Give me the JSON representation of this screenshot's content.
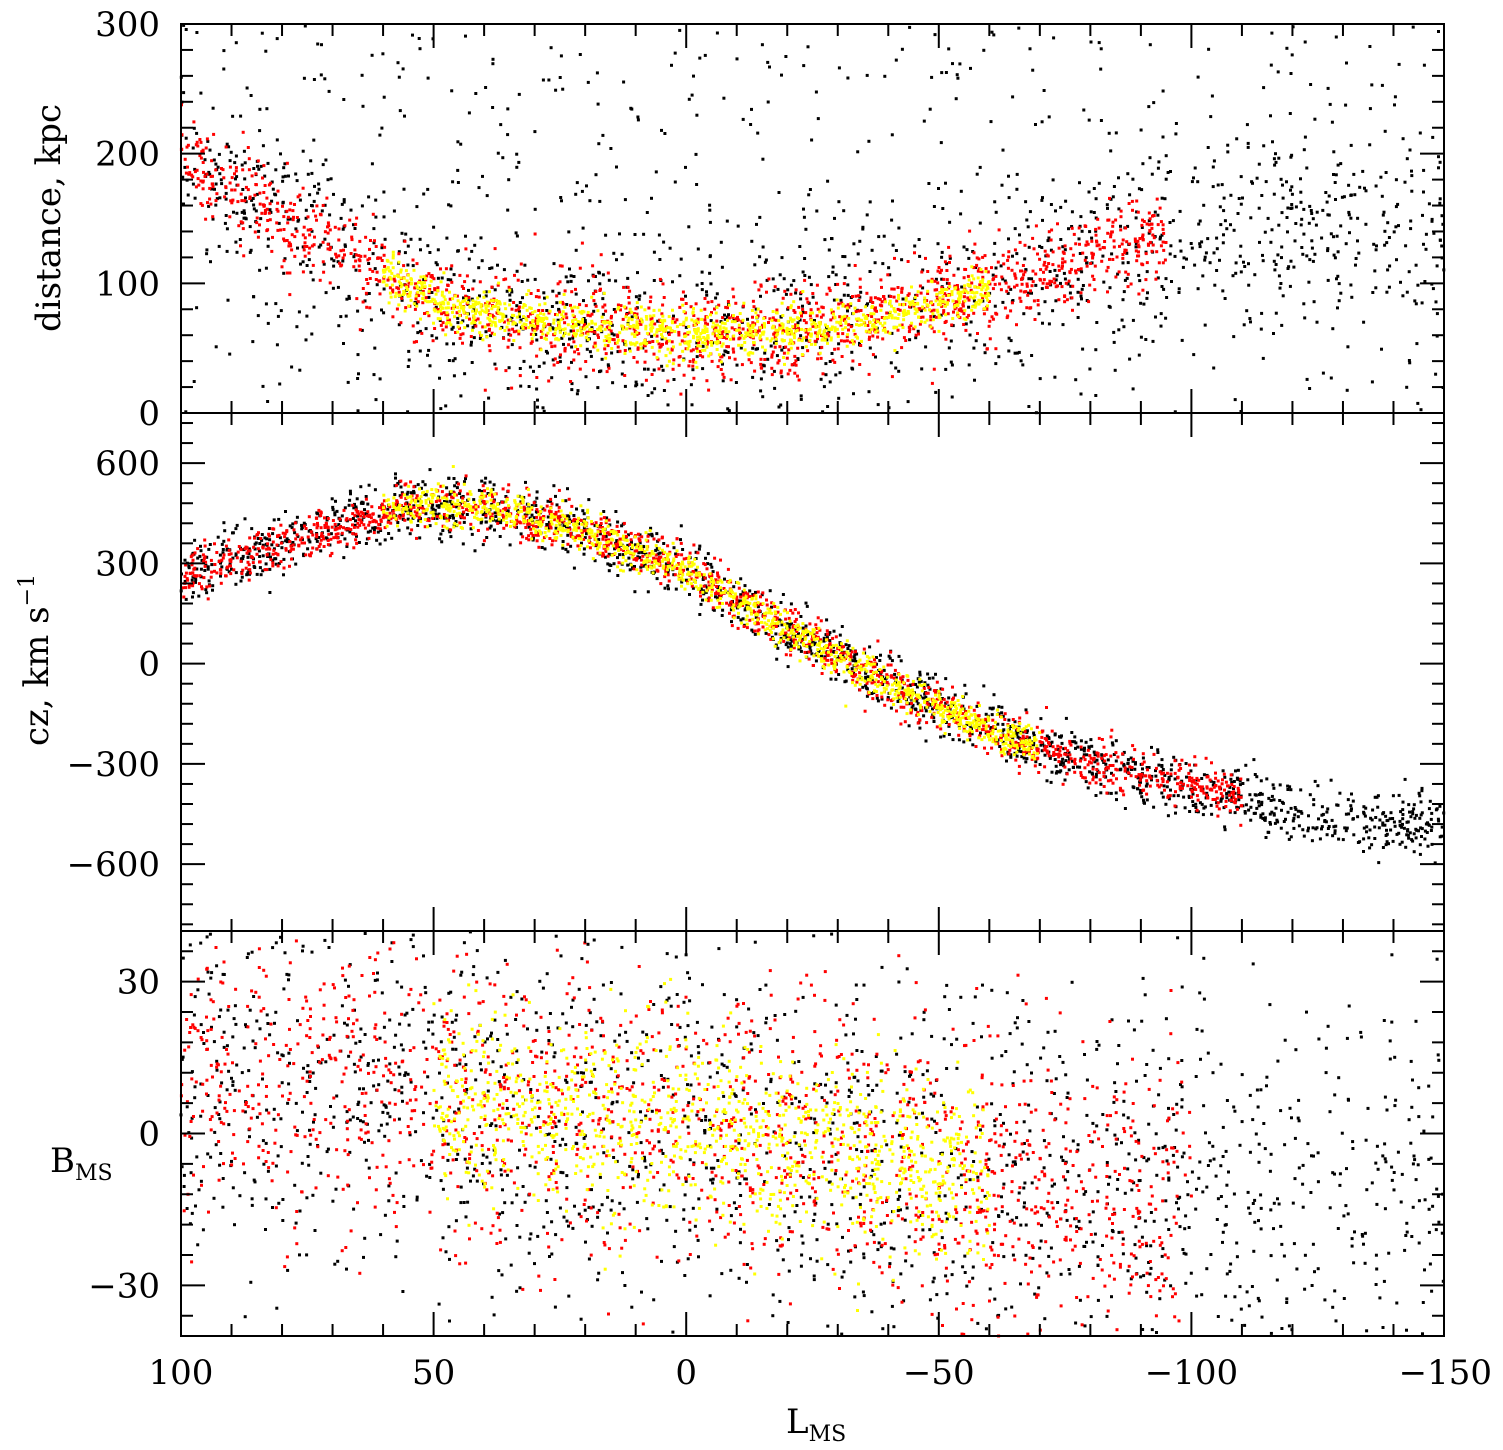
{
  "chart_data": {
    "type": "scatter",
    "shared_x": {
      "label_main": "L",
      "label_sub": "MS",
      "range": [
        100,
        -150
      ],
      "ticks": [
        100,
        50,
        0,
        -50,
        -100,
        -150
      ],
      "tick_labels": [
        "100",
        "50",
        "0",
        "−50",
        "−100",
        "−150"
      ]
    },
    "colors": {
      "far": "#000000",
      "mid": "#ff0000",
      "core": "#ffff00"
    },
    "panels": [
      {
        "id": "distance",
        "ylabel": "distance, kpc",
        "ylim": [
          0,
          300
        ],
        "ticks": [
          0,
          100,
          200,
          300
        ],
        "tick_labels": [
          "0",
          "100",
          "200",
          "300"
        ],
        "trend": [
          [
            100,
            200
          ],
          [
            80,
            150
          ],
          [
            65,
            120
          ],
          [
            50,
            85
          ],
          [
            30,
            70
          ],
          [
            0,
            60
          ],
          [
            -20,
            62
          ],
          [
            -40,
            75
          ],
          [
            -60,
            95
          ],
          [
            -80,
            120
          ],
          [
            -95,
            140
          ]
        ],
        "series": [
          {
            "name": "black",
            "color": "#000000",
            "L_range": [
              100,
              -150
            ],
            "spread": 35,
            "background": true
          },
          {
            "name": "red",
            "color": "#ff0000",
            "L_range": [
              100,
              -95
            ],
            "spread": 18
          },
          {
            "name": "yellow",
            "color": "#ffff00",
            "L_range": [
              60,
              -60
            ],
            "spread": 9
          }
        ]
      },
      {
        "id": "cz",
        "ylabel": "cz, km s",
        "ylabel_sup": "−1",
        "ylim": [
          -800,
          750
        ],
        "ticks": [
          -600,
          -300,
          0,
          300,
          600
        ],
        "tick_labels": [
          "−600",
          "−300",
          "0",
          "300",
          "600"
        ],
        "trend": [
          [
            100,
            270
          ],
          [
            85,
            330
          ],
          [
            70,
            410
          ],
          [
            55,
            470
          ],
          [
            40,
            470
          ],
          [
            20,
            400
          ],
          [
            0,
            280
          ],
          [
            -20,
            100
          ],
          [
            -40,
            -60
          ],
          [
            -60,
            -200
          ],
          [
            -80,
            -300
          ],
          [
            -100,
            -370
          ],
          [
            -120,
            -440
          ],
          [
            -135,
            -480
          ]
        ],
        "series": [
          {
            "name": "black",
            "color": "#000000",
            "L_range": [
              100,
              -150
            ],
            "spread": 45
          },
          {
            "name": "red",
            "color": "#ff0000",
            "L_range": [
              100,
              -110
            ],
            "spread": 35
          },
          {
            "name": "yellow",
            "color": "#ffff00",
            "L_range": [
              60,
              -70
            ],
            "spread": 28
          }
        ]
      },
      {
        "id": "bms",
        "ylabel_main": "B",
        "ylabel_sub": "MS",
        "ylim": [
          -40,
          40
        ],
        "ticks": [
          -30,
          0,
          30
        ],
        "tick_labels": [
          "−30",
          "0",
          "30"
        ],
        "trend": [
          [
            100,
            12
          ],
          [
            60,
            8
          ],
          [
            30,
            4
          ],
          [
            0,
            2
          ],
          [
            -30,
            -4
          ],
          [
            -60,
            -8
          ],
          [
            -90,
            -12
          ],
          [
            -130,
            -16
          ],
          [
            -150,
            -14
          ]
        ],
        "series": [
          {
            "name": "black",
            "color": "#000000",
            "L_range": [
              100,
              -150
            ],
            "spread": 20
          },
          {
            "name": "red",
            "color": "#ff0000",
            "L_range": [
              100,
              -100
            ],
            "spread": 15
          },
          {
            "name": "yellow",
            "color": "#ffff00",
            "L_range": [
              50,
              -60
            ],
            "spread": 9
          }
        ]
      }
    ]
  }
}
